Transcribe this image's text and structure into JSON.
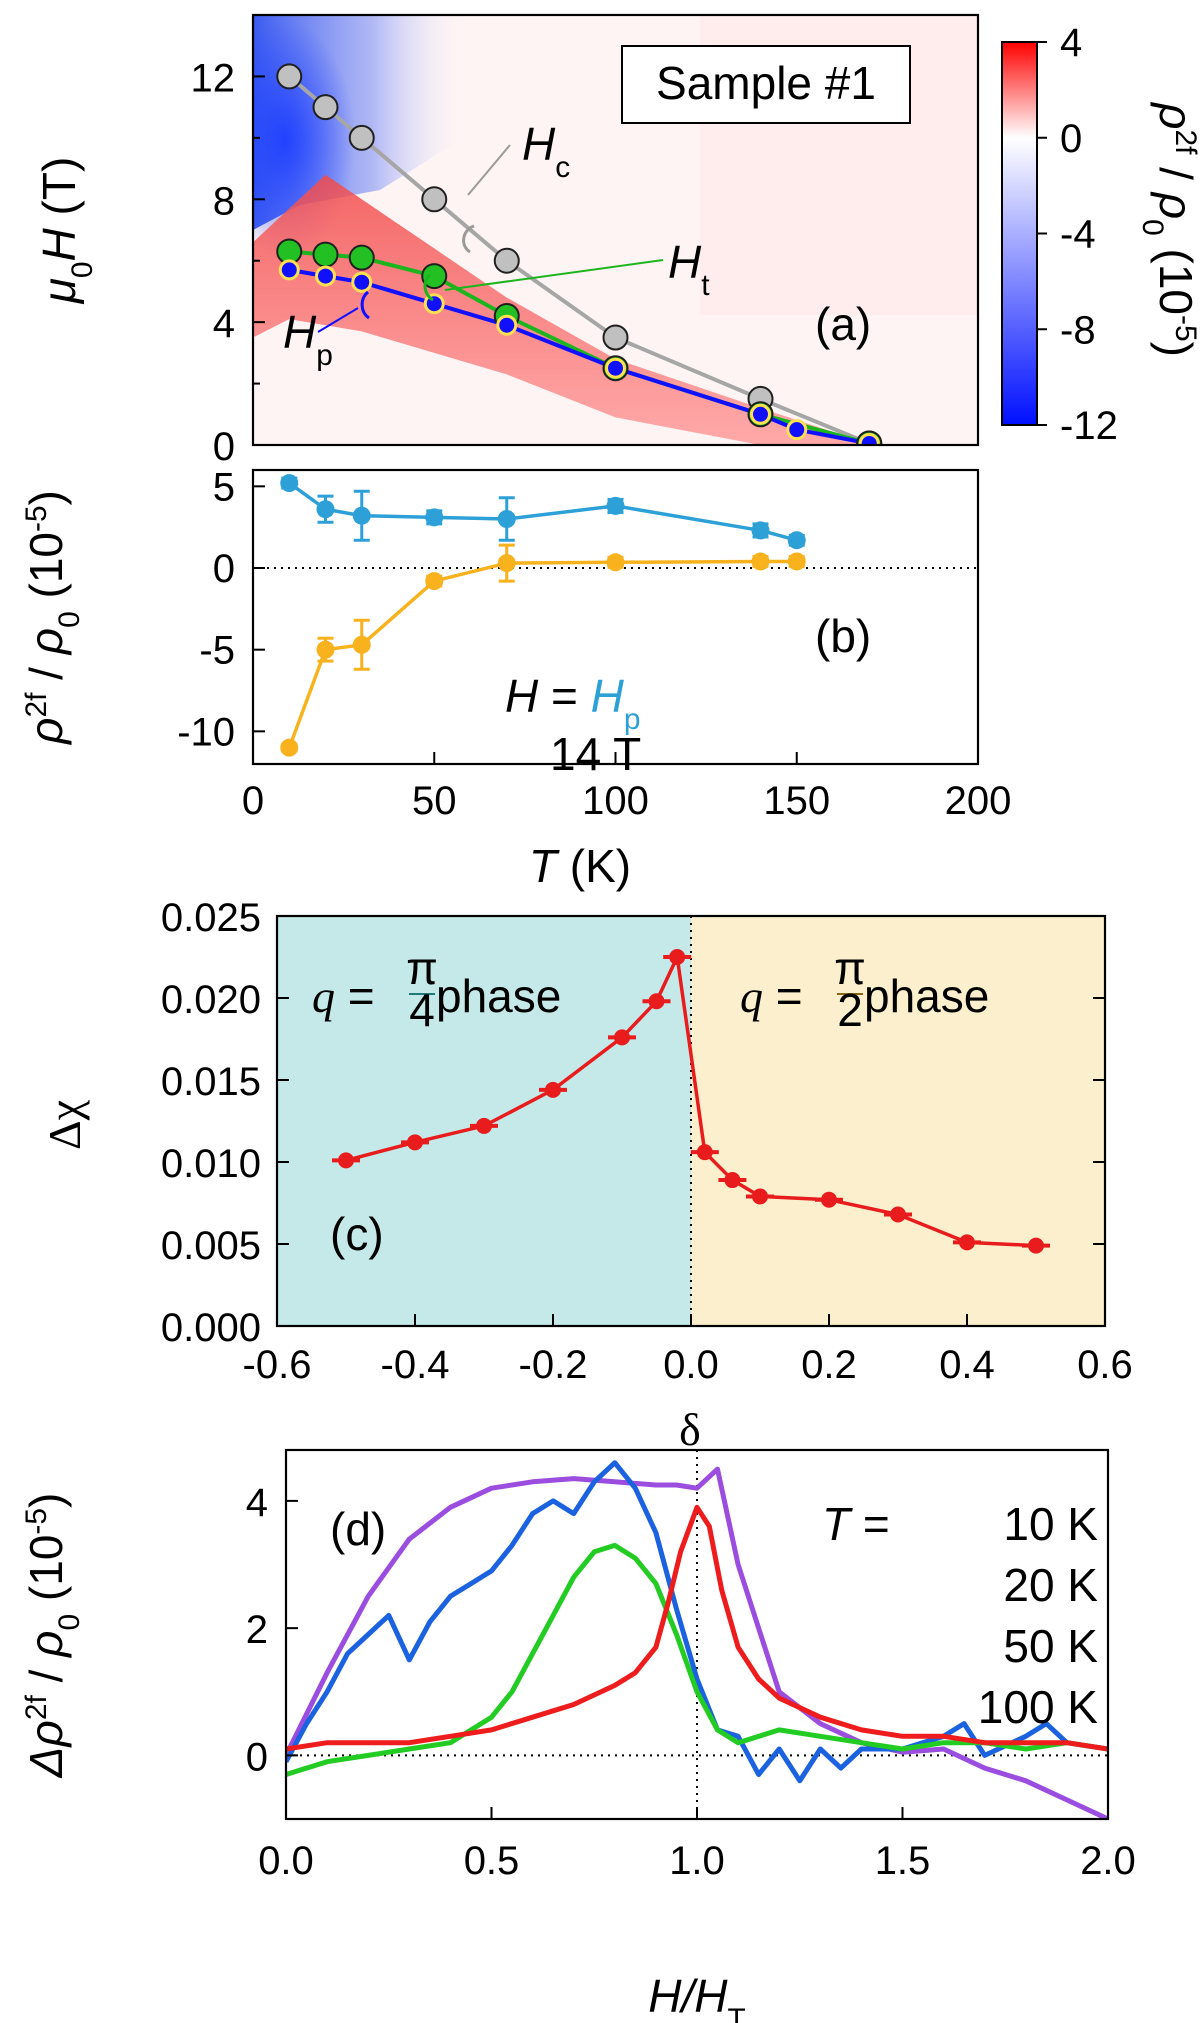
{
  "chart_data": [
    {
      "id": "a",
      "type": "heatmap",
      "panel_label": "(a)",
      "sample_label": "Sample #1",
      "ylabel_parts": [
        "μ",
        "0",
        "H",
        " (T)"
      ],
      "x_range": [
        0,
        200
      ],
      "y_range": [
        0,
        14
      ],
      "y_ticks": [
        "0",
        "4",
        "8",
        "12"
      ],
      "colorbar": {
        "range": [
          -12,
          4
        ],
        "ticks": [
          "4",
          "0",
          "-4",
          "-8",
          "-12"
        ],
        "label_parts": [
          "ρ",
          "2f",
          " / ",
          "ρ",
          "0",
          " (10",
          "-5",
          ")"
        ],
        "colors": {
          "neg": "#0010ff",
          "zero": "#ffffff",
          "pos": "#ff0000"
        }
      },
      "series": [
        {
          "name": "Hc",
          "label_parts": [
            "H",
            "c"
          ],
          "color": "#a6a6a6",
          "marker": "#c0c0c0",
          "x": [
            10,
            20,
            30,
            50,
            70,
            100,
            140,
            170
          ],
          "y": [
            12.0,
            11.0,
            10.0,
            8.0,
            6.0,
            3.5,
            1.5,
            0.05
          ]
        },
        {
          "name": "Ht",
          "label_parts": [
            "H",
            "t"
          ],
          "color": "#1db51d",
          "marker": "#22c022",
          "x": [
            10,
            20,
            30,
            50,
            70,
            100,
            140,
            170
          ],
          "y": [
            6.3,
            6.2,
            6.1,
            5.5,
            4.2,
            2.5,
            1.0,
            0.05
          ]
        },
        {
          "name": "Hp",
          "label_parts": [
            "H",
            "p"
          ],
          "color": "#1010ff",
          "marker": "#1010ff",
          "x": [
            10,
            20,
            30,
            50,
            70,
            100,
            140,
            150,
            170
          ],
          "y": [
            5.7,
            5.5,
            5.3,
            4.6,
            3.9,
            2.5,
            1.0,
            0.5,
            0.05
          ]
        }
      ]
    },
    {
      "id": "b",
      "type": "line",
      "panel_label": "(b)",
      "xlabel_parts": [
        "T",
        " (K)"
      ],
      "ylabel_parts": [
        "ρ",
        "2f",
        " / ",
        "ρ",
        "0",
        " (10",
        "-5",
        ")"
      ],
      "x_range": [
        0,
        200
      ],
      "y_range": [
        -12,
        6
      ],
      "x_ticks": [
        "0",
        "50",
        "100",
        "150",
        "200"
      ],
      "y_ticks": [
        "5",
        "0",
        "-5",
        "-10"
      ],
      "legend": {
        "prefix": "H = ",
        "hp_parts": [
          "H",
          "p"
        ],
        "t14": "14 T"
      },
      "series": [
        {
          "name": "H = Hp",
          "color": "#2ea0d8",
          "x": [
            10,
            20,
            30,
            50,
            70,
            100,
            140,
            150
          ],
          "y": [
            5.2,
            3.6,
            3.2,
            3.1,
            3.0,
            3.8,
            2.3,
            1.7
          ],
          "err": [
            0.3,
            0.8,
            1.5,
            0.4,
            1.3,
            0.4,
            0.4,
            0.3
          ]
        },
        {
          "name": "14 T",
          "color": "#f7b21e",
          "x": [
            10,
            20,
            30,
            50,
            70,
            100,
            140,
            150
          ],
          "y": [
            -11.0,
            -5.0,
            -4.7,
            -0.8,
            0.3,
            0.35,
            0.4,
            0.4
          ],
          "err": [
            0.2,
            0.7,
            1.5,
            0.3,
            1.1,
            0.3,
            0.3,
            0.3
          ]
        }
      ]
    },
    {
      "id": "c",
      "type": "line",
      "panel_label": "(c)",
      "xlabel": "δ",
      "ylabel": "Δχ",
      "x_range": [
        -0.6,
        0.6
      ],
      "y_range": [
        0.0,
        0.025
      ],
      "x_ticks": [
        "-0.6",
        "-0.4",
        "-0.2",
        "0.0",
        "0.2",
        "0.4",
        "0.6"
      ],
      "y_ticks": [
        "0.000",
        "0.005",
        "0.010",
        "0.015",
        "0.020",
        "0.025"
      ],
      "phases": {
        "left": {
          "q": "q",
          "eq": " = ",
          "num": "π",
          "den": "4",
          "word": " phase",
          "color": "#1e7b77",
          "bg": "#c5e8e8"
        },
        "right": {
          "q": "q",
          "eq": " = ",
          "num": "π",
          "den": "2",
          "word": " phase",
          "color": "#8a6a10",
          "bg": "#fbefcd"
        }
      },
      "series": [
        {
          "name": "Δχ",
          "color": "#e81c1c",
          "x": [
            -0.5,
            -0.4,
            -0.3,
            -0.2,
            -0.1,
            -0.05,
            -0.02,
            0.02,
            0.06,
            0.1,
            0.2,
            0.3,
            0.4,
            0.5
          ],
          "y": [
            0.0101,
            0.0112,
            0.0122,
            0.0144,
            0.0176,
            0.0198,
            0.0225,
            0.0106,
            0.0089,
            0.0079,
            0.0077,
            0.0068,
            0.0051,
            0.0049
          ]
        }
      ]
    },
    {
      "id": "d",
      "type": "line",
      "panel_label": "(d)",
      "xlabel_parts": [
        "H/H",
        "T"
      ],
      "ylabel_parts": [
        "Δρ",
        "2f",
        " / ",
        "ρ",
        "0",
        " (10",
        "-5",
        ")"
      ],
      "x_range": [
        0.0,
        2.0
      ],
      "y_range": [
        -1.0,
        4.8
      ],
      "x_ticks": [
        "0.0",
        "0.5",
        "1.0",
        "1.5",
        "2.0"
      ],
      "y_ticks": [
        "0",
        "2",
        "4"
      ],
      "legend_title": "T = ",
      "series": [
        {
          "name": "10 K",
          "color": "#9b4de0",
          "x": [
            0.0,
            0.1,
            0.2,
            0.3,
            0.4,
            0.5,
            0.6,
            0.7,
            0.8,
            0.9,
            0.95,
            1.0,
            1.05,
            1.1,
            1.15,
            1.2,
            1.3,
            1.4,
            1.5,
            1.6,
            1.7,
            1.8,
            1.9,
            2.0
          ],
          "y": [
            0.0,
            1.3,
            2.5,
            3.4,
            3.9,
            4.2,
            4.3,
            4.35,
            4.3,
            4.25,
            4.25,
            4.2,
            4.5,
            3.0,
            2.0,
            1.0,
            0.5,
            0.2,
            0.05,
            0.1,
            -0.2,
            -0.4,
            -0.7,
            -1.0
          ]
        },
        {
          "name": "20 K",
          "color": "#1a62e0",
          "x": [
            0.0,
            0.05,
            0.1,
            0.15,
            0.2,
            0.25,
            0.3,
            0.35,
            0.4,
            0.45,
            0.5,
            0.55,
            0.6,
            0.65,
            0.7,
            0.75,
            0.8,
            0.85,
            0.9,
            0.95,
            1.0,
            1.05,
            1.1,
            1.15,
            1.2,
            1.25,
            1.3,
            1.35,
            1.4,
            1.5,
            1.6,
            1.65,
            1.7,
            1.8,
            1.85,
            1.9,
            2.0
          ],
          "y": [
            -0.1,
            0.5,
            1.0,
            1.6,
            1.9,
            2.2,
            1.5,
            2.1,
            2.5,
            2.7,
            2.9,
            3.3,
            3.8,
            4.0,
            3.8,
            4.3,
            4.6,
            4.2,
            3.5,
            2.3,
            1.2,
            0.4,
            0.3,
            -0.3,
            0.1,
            -0.4,
            0.1,
            -0.2,
            0.1,
            0.1,
            0.3,
            0.5,
            0.0,
            0.3,
            0.5,
            0.2,
            0.1
          ]
        },
        {
          "name": "50 K",
          "color": "#22cc22",
          "x": [
            0.0,
            0.1,
            0.2,
            0.3,
            0.4,
            0.5,
            0.55,
            0.6,
            0.65,
            0.7,
            0.75,
            0.8,
            0.85,
            0.9,
            0.95,
            1.0,
            1.05,
            1.1,
            1.2,
            1.3,
            1.4,
            1.5,
            1.6,
            1.7,
            1.8,
            1.9,
            2.0
          ],
          "y": [
            -0.3,
            -0.1,
            0.0,
            0.1,
            0.2,
            0.6,
            1.0,
            1.6,
            2.2,
            2.8,
            3.2,
            3.3,
            3.1,
            2.7,
            1.9,
            1.0,
            0.4,
            0.2,
            0.4,
            0.3,
            0.2,
            0.1,
            0.2,
            0.2,
            0.1,
            0.2,
            0.1
          ]
        },
        {
          "name": "100 K",
          "color": "#ee1c1c",
          "x": [
            0.0,
            0.1,
            0.2,
            0.3,
            0.4,
            0.5,
            0.6,
            0.7,
            0.8,
            0.85,
            0.9,
            0.93,
            0.96,
            1.0,
            1.03,
            1.06,
            1.1,
            1.15,
            1.2,
            1.3,
            1.4,
            1.5,
            1.6,
            1.7,
            1.8,
            1.9,
            2.0
          ],
          "y": [
            0.1,
            0.2,
            0.2,
            0.2,
            0.3,
            0.4,
            0.6,
            0.8,
            1.1,
            1.3,
            1.7,
            2.4,
            3.2,
            3.9,
            3.6,
            2.6,
            1.7,
            1.2,
            0.9,
            0.6,
            0.4,
            0.3,
            0.3,
            0.2,
            0.2,
            0.2,
            0.1
          ]
        }
      ]
    }
  ]
}
